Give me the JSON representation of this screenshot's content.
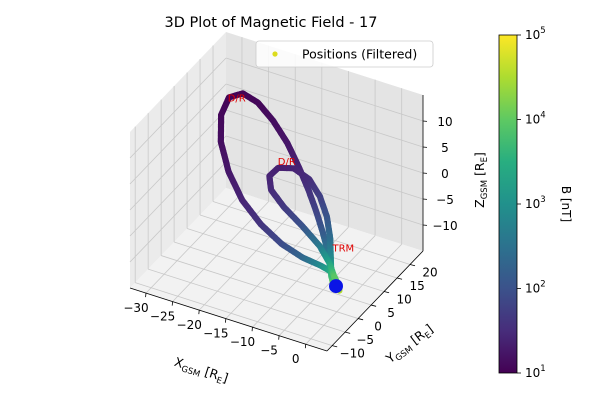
{
  "chart_data": {
    "type": "scatter3d",
    "title": "3D Plot of Magnetic Field - 17",
    "xlabel": "X_GSM [R_E]",
    "ylabel": "Y_GSM [R_E]",
    "zlabel": "Z_GSM [R_E]",
    "xlim": [
      -33,
      4
    ],
    "ylim": [
      -12,
      25
    ],
    "zlim": [
      -15,
      15
    ],
    "x_ticks": [
      "−30",
      "−25",
      "−20",
      "−15",
      "−10",
      "−5",
      "0"
    ],
    "x_tick_values": [
      -30,
      -25,
      -20,
      -15,
      -10,
      -5,
      0
    ],
    "y_ticks": [
      "−10",
      "−5",
      "0",
      "5",
      "10",
      "15",
      "20"
    ],
    "y_tick_values": [
      -10,
      -5,
      0,
      5,
      10,
      15,
      20
    ],
    "z_ticks": [
      "−10",
      "−5",
      "0",
      "5",
      "10"
    ],
    "z_tick_values": [
      -10,
      -5,
      0,
      5,
      10
    ],
    "grid": true,
    "legend": {
      "placement": "top-right",
      "entries": [
        {
          "label": "Positions (Filtered)",
          "color": "#dcdc1e"
        }
      ]
    },
    "colorbar": {
      "label": "B [nT]",
      "scale": "log",
      "range": [
        10,
        100000
      ],
      "ticks": [
        {
          "value": 10,
          "base": "10",
          "exp": "1"
        },
        {
          "value": 100,
          "base": "10",
          "exp": "2"
        },
        {
          "value": 1000,
          "base": "10",
          "exp": "3"
        },
        {
          "value": 10000,
          "base": "10",
          "exp": "4"
        },
        {
          "value": 100000,
          "base": "10",
          "exp": "5"
        }
      ],
      "colormap": "viridis"
    },
    "series": [
      {
        "name": "field-line",
        "points": [
          {
            "x": -1.0,
            "y": 1.0,
            "z": -11.5,
            "B": 20000
          },
          {
            "x": -1.7,
            "y": 1.6,
            "z": -10.0,
            "B": 8000
          },
          {
            "x": -2.5,
            "y": 2.4,
            "z": -8.0,
            "B": 1500
          },
          {
            "x": -3.5,
            "y": 3.5,
            "z": -6.0,
            "B": 400
          },
          {
            "x": -5.0,
            "y": 4.8,
            "z": -3.8,
            "B": 150
          },
          {
            "x": -7.0,
            "y": 6.5,
            "z": -1.5,
            "B": 70
          },
          {
            "x": -9.5,
            "y": 8.6,
            "z": 0.8,
            "B": 40
          },
          {
            "x": -12.5,
            "y": 11.0,
            "z": 3.0,
            "B": 25
          },
          {
            "x": -16.0,
            "y": 13.8,
            "z": 5.0,
            "B": 18
          },
          {
            "x": -20.0,
            "y": 16.5,
            "z": 6.6,
            "B": 14
          },
          {
            "x": -24.0,
            "y": 18.8,
            "z": 7.6,
            "B": 12
          },
          {
            "x": -27.5,
            "y": 20.2,
            "z": 7.5,
            "B": 11
          },
          {
            "x": -30.0,
            "y": 20.0,
            "z": 6.0,
            "B": 11
          },
          {
            "x": -30.5,
            "y": 18.0,
            "z": 3.5,
            "B": 12
          },
          {
            "x": -29.0,
            "y": 14.8,
            "z": 0.5,
            "B": 14
          },
          {
            "x": -25.8,
            "y": 11.2,
            "z": -2.3,
            "B": 18
          },
          {
            "x": -21.5,
            "y": 7.6,
            "z": -4.5,
            "B": 25
          },
          {
            "x": -16.5,
            "y": 4.6,
            "z": -6.0,
            "B": 40
          },
          {
            "x": -11.5,
            "y": 2.4,
            "z": -7.0,
            "B": 80
          },
          {
            "x": -7.0,
            "y": 1.2,
            "z": -7.5,
            "B": 200
          },
          {
            "x": -3.5,
            "y": 1.0,
            "z": -7.8,
            "B": 800
          },
          {
            "x": -1.5,
            "y": 1.2,
            "z": -8.5,
            "B": 3000
          },
          {
            "x": -0.5,
            "y": 1.4,
            "z": -10.5,
            "B": 15000
          },
          {
            "x": -0.2,
            "y": 1.5,
            "z": -12.0,
            "B": 40000
          }
        ]
      },
      {
        "name": "inner-loop",
        "points": [
          {
            "x": -2.0,
            "y": 2.0,
            "z": -10.0,
            "B": 6000
          },
          {
            "x": -2.5,
            "y": 2.8,
            "z": -7.0,
            "B": 1000
          },
          {
            "x": -3.2,
            "y": 4.0,
            "z": -4.0,
            "B": 300
          },
          {
            "x": -4.5,
            "y": 5.4,
            "z": -1.0,
            "B": 120
          },
          {
            "x": -6.5,
            "y": 6.8,
            "z": 1.5,
            "B": 60
          },
          {
            "x": -9.0,
            "y": 7.8,
            "z": 3.5,
            "B": 35
          },
          {
            "x": -12.0,
            "y": 8.0,
            "z": 4.5,
            "B": 25
          },
          {
            "x": -14.5,
            "y": 7.2,
            "z": 4.2,
            "B": 22
          },
          {
            "x": -15.5,
            "y": 5.8,
            "z": 3.0,
            "B": 25
          },
          {
            "x": -14.5,
            "y": 4.4,
            "z": 1.4,
            "B": 30
          },
          {
            "x": -11.5,
            "y": 3.2,
            "z": -0.3,
            "B": 45
          },
          {
            "x": -7.5,
            "y": 2.2,
            "z": -2.2,
            "B": 100
          },
          {
            "x": -4.0,
            "y": 1.6,
            "z": -4.5,
            "B": 400
          },
          {
            "x": -2.0,
            "y": 1.3,
            "z": -7.0,
            "B": 2000
          },
          {
            "x": -1.0,
            "y": 1.2,
            "z": -9.5,
            "B": 10000
          }
        ]
      }
    ],
    "markers": [
      {
        "name": "spacecraft-position",
        "x": -0.8,
        "y": 1.3,
        "z": -11.0,
        "color": "#0a14e6"
      }
    ],
    "annotations": [
      {
        "text": "D/R",
        "x": -30.0,
        "y": 19.5,
        "z": 5.5,
        "color": "#e00000"
      },
      {
        "text": "D/R",
        "x": -14.8,
        "y": 7.6,
        "z": 4.4,
        "color": "#e00000"
      },
      {
        "text": "TRM",
        "x": -1.6,
        "y": 1.6,
        "z": -4.8,
        "color": "#e00000"
      }
    ]
  }
}
